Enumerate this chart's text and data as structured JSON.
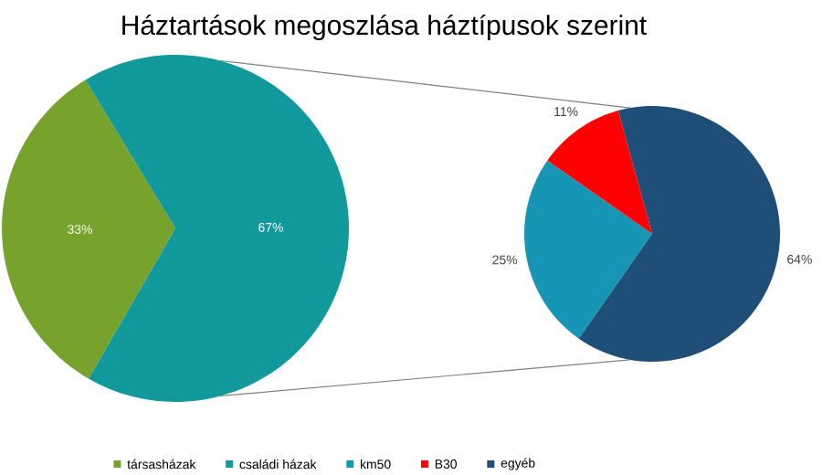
{
  "chart_data": [
    {
      "type": "pie",
      "title": "Háztartások megoszlása háztípusok szerint",
      "categories": [
        "társasházak",
        "családi házak"
      ],
      "values": [
        33,
        67
      ],
      "colors": [
        "#77a22b",
        "#12999b"
      ],
      "value_labels": [
        "33%",
        "67%"
      ],
      "legend": "bottom"
    },
    {
      "type": "pie",
      "categories": [
        "km50",
        "B30",
        "egyéb"
      ],
      "values": [
        25,
        11,
        64
      ],
      "colors": [
        "#1696b4",
        "#ff0000",
        "#1f4e79"
      ],
      "value_labels": [
        "25%",
        "11%",
        "64%"
      ],
      "legend": "bottom"
    }
  ]
}
